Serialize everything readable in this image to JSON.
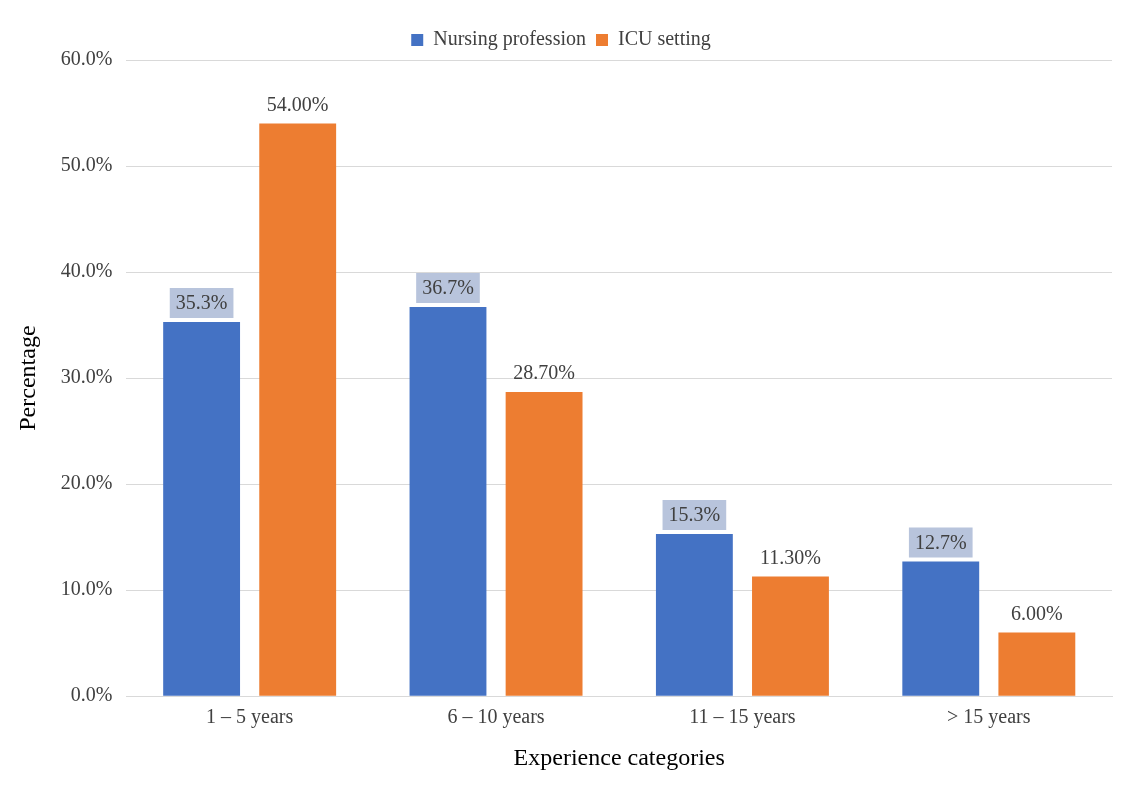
{
  "chart_data": {
    "type": "bar",
    "xlabel": "Experience categories",
    "ylabel": "Percentage",
    "categories": [
      "1 – 5 years",
      "6 – 10 years",
      "11 – 15 years",
      "> 15 years"
    ],
    "series": [
      {
        "name": "Nursing profession",
        "color": "#4472c4",
        "values": [
          35.3,
          36.7,
          15.3,
          12.7
        ],
        "value_labels": [
          "35.3%",
          "36.7%",
          "15.3%",
          "12.7%"
        ]
      },
      {
        "name": "ICU setting",
        "color": "#ed7d31",
        "values": [
          54,
          28.7,
          11.3,
          6
        ],
        "value_labels": [
          "54.00%",
          "28.70%",
          "11.30%",
          "6.00%"
        ]
      }
    ],
    "ylim": [
      0,
      60
    ],
    "yticks": [
      {
        "value": 0,
        "label": "0.0%"
      },
      {
        "value": 10,
        "label": "10.0%"
      },
      {
        "value": 20,
        "label": "20.0%"
      },
      {
        "value": 30,
        "label": "30.0%"
      },
      {
        "value": 40,
        "label": "40.0%"
      },
      {
        "value": 50,
        "label": "50.0%"
      },
      {
        "value": 60,
        "label": "60.0%"
      }
    ],
    "grid": "y",
    "legend": "top"
  }
}
